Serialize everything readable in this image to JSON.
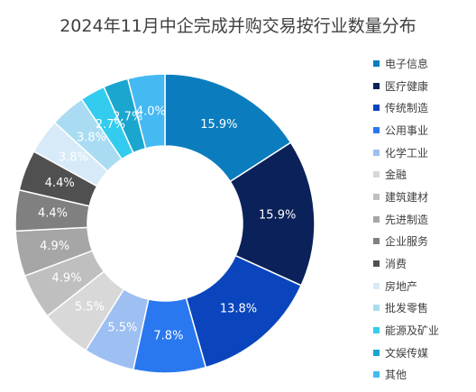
{
  "chart_data": {
    "type": "pie",
    "title": "2024年11月中企完成并购交易按行业数量分布",
    "categories": [
      "电子信息",
      "医疗健康",
      "传统制造",
      "公用事业",
      "化学工业",
      "金融",
      "建筑建材",
      "先进制造",
      "企业服务",
      "消费",
      "房地产",
      "批发零售",
      "能源及矿业",
      "文娱传媒",
      "其他"
    ],
    "values": [
      15.9,
      15.9,
      13.8,
      7.8,
      5.5,
      5.5,
      4.9,
      4.9,
      4.4,
      4.4,
      3.8,
      3.8,
      2.7,
      2.7,
      4.0
    ],
    "data_labels": [
      "15.9%",
      "15.9%",
      "13.8%",
      "7.8%",
      "5.5%",
      "5.5%",
      "4.9%",
      "4.9%",
      "4.4%",
      "4.4%",
      "3.8%",
      "3.8%",
      "2.7%",
      "2.7%",
      "4.0%"
    ],
    "colors": [
      "#0b7dbf",
      "#0b2159",
      "#0a45bd",
      "#2a78f0",
      "#9dbff2",
      "#d8d8d8",
      "#bfbfbf",
      "#a6a6a6",
      "#808080",
      "#505050",
      "#d7eaf7",
      "#a9dcf2",
      "#33ccef",
      "#1aa6cf",
      "#44b9f2"
    ],
    "label_colors": [
      "#ffffff",
      "#ffffff",
      "#ffffff",
      "#ffffff",
      "#ffffff",
      "#ffffff",
      "#ffffff",
      "#ffffff",
      "#ffffff",
      "#ffffff",
      "#ffffff",
      "#ffffff",
      "#ffffff",
      "#ffffff",
      "#ffffff"
    ],
    "donut": true,
    "legend_position": "right"
  }
}
